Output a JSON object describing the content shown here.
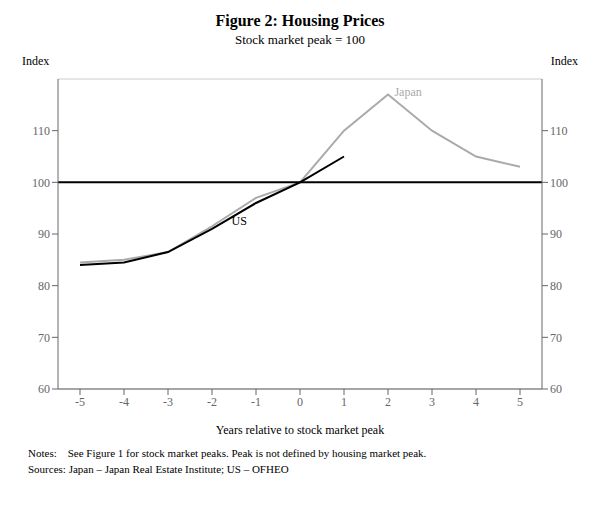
{
  "chart_data": {
    "type": "line",
    "title": "Figure 2: Housing Prices",
    "subtitle": "Stock market peak = 100",
    "xlabel": "Years relative to stock market peak",
    "ylabel": "Index",
    "y2label": "Index",
    "x": [
      -5,
      -4,
      -3,
      -2,
      -1,
      0,
      1,
      2,
      3,
      4,
      5
    ],
    "series": [
      {
        "name": "US",
        "color": "#000000",
        "values": [
          84,
          84.5,
          86.5,
          91,
          96,
          100,
          105,
          null,
          null,
          null,
          null
        ]
      },
      {
        "name": "Japan",
        "color": "#aaaaaa",
        "values": [
          84.5,
          85,
          86.5,
          91.5,
          97,
          100,
          110,
          117,
          110,
          105,
          103
        ]
      }
    ],
    "xlim": [
      -5.5,
      5.5
    ],
    "xticks": [
      -5,
      -4,
      -3,
      -2,
      -1,
      0,
      1,
      2,
      3,
      4,
      5
    ],
    "ylim": [
      60,
      120
    ],
    "yticks": [
      60,
      70,
      80,
      90,
      100,
      110
    ],
    "y2lim": [
      60,
      120
    ],
    "y2ticks": [
      60,
      70,
      80,
      90,
      100,
      110
    ],
    "grid": true,
    "annotations": [
      {
        "type": "hline",
        "y": 100,
        "color": "#000000"
      },
      {
        "type": "text",
        "text": "US",
        "x": -1.6,
        "y": 92.5,
        "color": "#000000"
      },
      {
        "type": "text",
        "text": "Japan",
        "x": 2.1,
        "y": 117.5,
        "color": "#aaaaaa"
      }
    ],
    "notes": [
      "Notes:    See Figure 1 for stock market peaks. Peak is not defined by housing market peak.",
      "Sources: Japan – Japan Real Estate Institute; US – OFHEO"
    ]
  }
}
